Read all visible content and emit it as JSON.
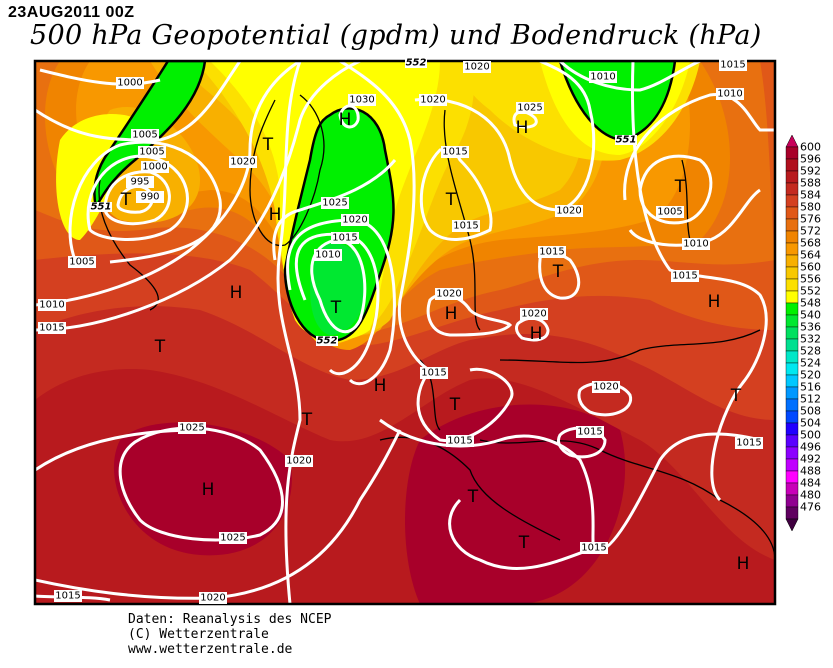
{
  "header": {
    "date": "23AUG2011 00Z",
    "title": "500 hPa Geopotential (gpdm) und Bodendruck (hPa)"
  },
  "footer": {
    "line1": "Daten: Reanalysis des NCEP",
    "line2": "(C) Wetterzentrale",
    "line3": "www.wetterzentrale.de"
  },
  "colorbar": {
    "levels": [
      "600",
      "596",
      "592",
      "588",
      "584",
      "580",
      "576",
      "572",
      "568",
      "564",
      "560",
      "556",
      "552",
      "548",
      "540",
      "536",
      "532",
      "528",
      "524",
      "520",
      "516",
      "512",
      "508",
      "504",
      "500",
      "496",
      "492",
      "488",
      "484",
      "480",
      "476"
    ],
    "colors": [
      "#a8002a",
      "#b0101e",
      "#b81a1e",
      "#c42a20",
      "#d44020",
      "#e05818",
      "#e87010",
      "#f08400",
      "#f89800",
      "#f8b000",
      "#f8c800",
      "#fce000",
      "#ffff00",
      "#00f000",
      "#00e830",
      "#00e060",
      "#00e090",
      "#00e8c8",
      "#00e8f0",
      "#00c8ff",
      "#0098ff",
      "#0070ff",
      "#0048ff",
      "#2000ff",
      "#5a00ff",
      "#8c00ff",
      "#c000ff",
      "#ff00ff",
      "#c800b8",
      "#900090",
      "#600060"
    ],
    "top_color": "#c8005a",
    "bottom_color": "#400040"
  },
  "map": {
    "contour_labels": [
      "551",
      "552",
      "552",
      "551"
    ],
    "isobar_labels": [
      "1000",
      "1005",
      "1005",
      "1000",
      "995",
      "990",
      "1005",
      "1010",
      "1015",
      "1020",
      "1030",
      "1025",
      "1020",
      "1015",
      "1010",
      "1020",
      "1020",
      "1015",
      "1025",
      "1020",
      "1015",
      "1015",
      "1020",
      "1020",
      "1010",
      "1015",
      "1010",
      "1005",
      "1010",
      "1015",
      "1015",
      "1020",
      "1015",
      "1015",
      "1025",
      "1020",
      "1025",
      "1015",
      "1015",
      "1015",
      "1020"
    ],
    "centers": [
      "T",
      "T",
      "H",
      "H",
      "T",
      "H",
      "T",
      "H",
      "T",
      "T",
      "H",
      "T",
      "T",
      "H",
      "H",
      "T",
      "H",
      "T",
      "T",
      "T",
      "H",
      "H"
    ]
  }
}
